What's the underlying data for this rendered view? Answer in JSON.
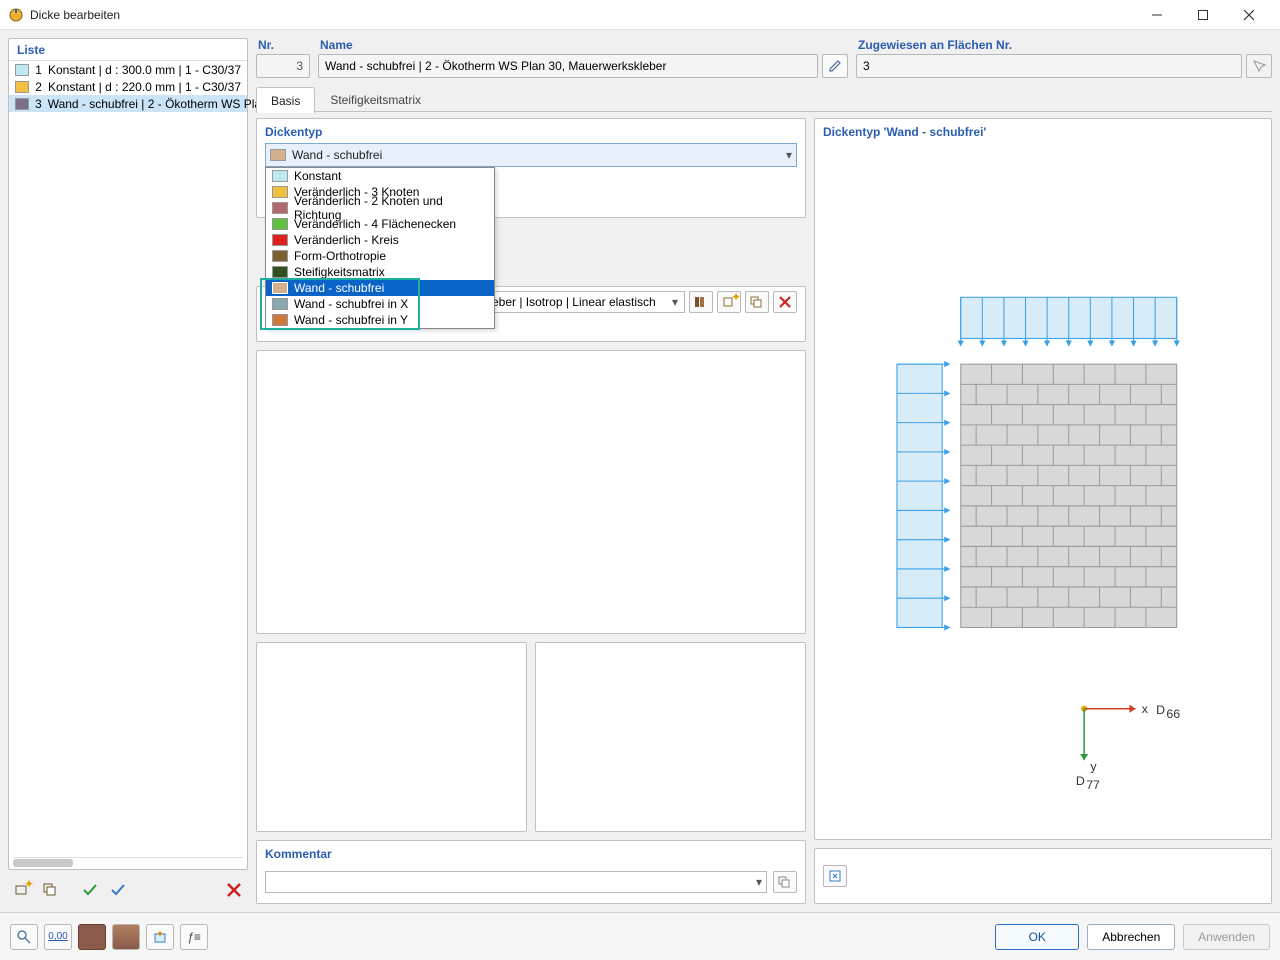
{
  "window": {
    "title": "Dicke bearbeiten"
  },
  "list": {
    "header": "Liste",
    "items": [
      {
        "num": "1",
        "text": "Konstant | d : 300.0 mm | 1 - C30/37",
        "color": "#bfe8f0"
      },
      {
        "num": "2",
        "text": "Konstant | d : 220.0 mm | 1 - C30/37",
        "color": "#f0c040"
      },
      {
        "num": "3",
        "text": "Wand - schubfrei | 2 - Ökotherm WS Pla",
        "color": "#7a7088",
        "selected": true
      }
    ]
  },
  "fields": {
    "nr_label": "Nr.",
    "nr_value": "3",
    "name_label": "Name",
    "name_value": "Wand - schubfrei | 2 - Ökotherm WS Plan 30, Mauerwerkskleber",
    "assign_label": "Zugewiesen an Flächen Nr.",
    "assign_value": "3"
  },
  "tabs": {
    "basis": "Basis",
    "steif": "Steifigkeitsmatrix"
  },
  "dickentyp": {
    "label": "Dickentyp",
    "selected": "Wand - schubfrei",
    "selected_color": "#d4b090",
    "options": [
      {
        "label": "Konstant",
        "color": "#bfe8f0"
      },
      {
        "label": "Veränderlich - 3 Knoten",
        "color": "#f0c040"
      },
      {
        "label": "Veränderlich - 2 Knoten und Richtung",
        "color": "#b06a6a"
      },
      {
        "label": "Veränderlich - 4 Flächenecken",
        "color": "#60c040"
      },
      {
        "label": "Veränderlich - Kreis",
        "color": "#e02020"
      },
      {
        "label": "Form-Orthotropie",
        "color": "#806030"
      },
      {
        "label": "Steifigkeitsmatrix",
        "color": "#305020"
      },
      {
        "label": "Wand - schubfrei",
        "color": "#d4b090"
      },
      {
        "label": "Wand - schubfrei in X",
        "color": "#8aa8b0"
      },
      {
        "label": "Wand - schubfrei in Y",
        "color": "#d07a40"
      }
    ],
    "highlight_start": 7,
    "highlight_end": 9
  },
  "material_row": {
    "text": "eber | Isotrop | Linear elastisch"
  },
  "kommentar": {
    "label": "Kommentar"
  },
  "preview": {
    "label": "Dickentyp  'Wand - schubfrei'",
    "axis_x": "x",
    "axis_y": "y",
    "d66": "D",
    "d66_sub": "66",
    "d77": "D",
    "d77_sub": "77",
    "arrow_color": "#3aa0e8",
    "brick_fill": "#d8d8d8",
    "brick_line": "#9a9a9a",
    "load_fill": "#d8ecf8"
  },
  "buttons": {
    "ok": "OK",
    "cancel": "Abbrechen",
    "apply": "Anwenden"
  }
}
